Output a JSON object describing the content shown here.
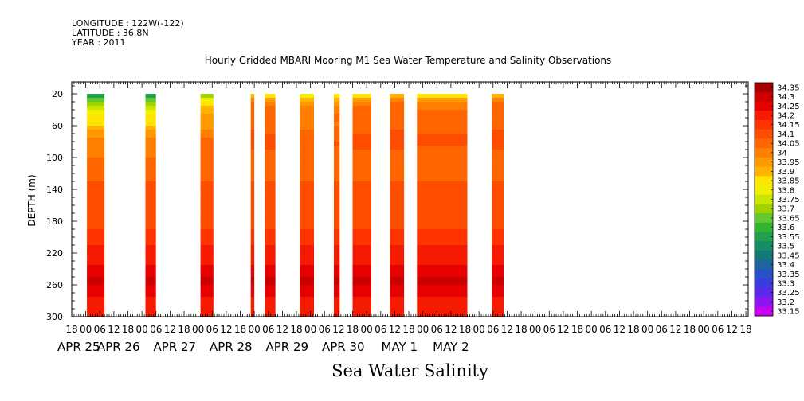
{
  "header": {
    "longitude": "LONGITUDE : 122W(-122)",
    "latitude": "LATITUDE : 36.8N",
    "year": "YEAR : 2011"
  },
  "chart_data": {
    "type": "heatmap",
    "title": "Hourly Gridded MBARI Mooring M1 Sea Water Temperature and Salinity Observations",
    "xlabel": "Sea Water Salinity",
    "ylabel": "DEPTH (m)",
    "y_axis": {
      "reversed": true,
      "ylim": [
        300,
        5
      ],
      "ticks": [
        20,
        60,
        100,
        140,
        180,
        220,
        260,
        300
      ]
    },
    "x_axis": {
      "units": "hours since 2011-04-25 00:00",
      "xlim": [
        -6,
        283
      ],
      "hour_ticks": [
        {
          "hour": -6,
          "label": "18"
        },
        {
          "hour": 0,
          "label": "00"
        },
        {
          "hour": 6,
          "label": "06"
        },
        {
          "hour": 12,
          "label": "12"
        },
        {
          "hour": 18,
          "label": "18"
        },
        {
          "hour": 24,
          "label": "00"
        },
        {
          "hour": 30,
          "label": "06"
        },
        {
          "hour": 36,
          "label": "12"
        },
        {
          "hour": 42,
          "label": "18"
        },
        {
          "hour": 48,
          "label": "00"
        },
        {
          "hour": 54,
          "label": "06"
        },
        {
          "hour": 60,
          "label": "12"
        },
        {
          "hour": 66,
          "label": "18"
        },
        {
          "hour": 72,
          "label": "00"
        },
        {
          "hour": 78,
          "label": "06"
        },
        {
          "hour": 84,
          "label": "12"
        },
        {
          "hour": 90,
          "label": "18"
        },
        {
          "hour": 96,
          "label": "00"
        },
        {
          "hour": 102,
          "label": "06"
        },
        {
          "hour": 108,
          "label": "12"
        },
        {
          "hour": 114,
          "label": "18"
        },
        {
          "hour": 120,
          "label": "00"
        },
        {
          "hour": 126,
          "label": "06"
        },
        {
          "hour": 132,
          "label": "12"
        },
        {
          "hour": 138,
          "label": "18"
        },
        {
          "hour": 144,
          "label": "00"
        },
        {
          "hour": 150,
          "label": "06"
        },
        {
          "hour": 156,
          "label": "12"
        },
        {
          "hour": 162,
          "label": "18"
        },
        {
          "hour": 168,
          "label": "00"
        },
        {
          "hour": 174,
          "label": "06"
        },
        {
          "hour": 180,
          "label": "12"
        },
        {
          "hour": 186,
          "label": "18"
        },
        {
          "hour": 192,
          "label": "00"
        },
        {
          "hour": 198,
          "label": "06"
        },
        {
          "hour": 204,
          "label": "12"
        },
        {
          "hour": 210,
          "label": "18"
        },
        {
          "hour": 216,
          "label": "00"
        },
        {
          "hour": 222,
          "label": "06"
        },
        {
          "hour": 228,
          "label": "12"
        },
        {
          "hour": 234,
          "label": "18"
        },
        {
          "hour": 240,
          "label": "00"
        },
        {
          "hour": 246,
          "label": "06"
        },
        {
          "hour": 252,
          "label": "12"
        },
        {
          "hour": 258,
          "label": "18"
        },
        {
          "hour": 264,
          "label": "00"
        },
        {
          "hour": 270,
          "label": "06"
        },
        {
          "hour": 276,
          "label": "12"
        },
        {
          "hour": 282,
          "label": "18"
        }
      ],
      "date_labels": [
        {
          "hour": -3,
          "label": "APR 25"
        },
        {
          "hour": 14,
          "label": "APR 26"
        },
        {
          "hour": 38,
          "label": "APR 27"
        },
        {
          "hour": 62,
          "label": "APR 28"
        },
        {
          "hour": 86,
          "label": "APR 29"
        },
        {
          "hour": 110,
          "label": "APR 30"
        },
        {
          "hour": 134,
          "label": "MAY  1"
        },
        {
          "hour": 156,
          "label": "MAY  2"
        }
      ]
    },
    "colorbar": {
      "levels": [
        "34.35",
        "34.3",
        "34.25",
        "34.2",
        "34.15",
        "34.1",
        "34.05",
        "34",
        "33.95",
        "33.9",
        "33.85",
        "33.8",
        "33.75",
        "33.7",
        "33.65",
        "33.6",
        "33.55",
        "33.5",
        "33.45",
        "33.4",
        "33.35",
        "33.3",
        "33.25",
        "33.2",
        "33.15"
      ],
      "colors": [
        "#a50000",
        "#cc0000",
        "#e60000",
        "#f51a00",
        "#ff3300",
        "#ff4d00",
        "#ff6600",
        "#ff8000",
        "#ff9900",
        "#ffb300",
        "#ffe600",
        "#f0f000",
        "#c8e600",
        "#a0d200",
        "#64c832",
        "#32b432",
        "#1ea050",
        "#148c64",
        "#147878",
        "#1e64a0",
        "#2850c8",
        "#3c3cdc",
        "#5a28e6",
        "#8c14f0",
        "#c800f0"
      ]
    },
    "profile": {
      "depths": [
        20,
        25,
        35,
        45,
        60,
        70,
        85,
        100,
        110,
        125,
        140,
        160,
        180,
        200,
        210,
        225,
        240,
        250,
        260,
        275,
        290,
        300
      ],
      "salinity": [
        33.5,
        33.65,
        33.78,
        33.85,
        33.9,
        33.98,
        34.04,
        34.05,
        34.07,
        34.09,
        34.12,
        34.13,
        34.14,
        34.16,
        34.2,
        34.22,
        34.26,
        34.3,
        34.3,
        34.25,
        34.22,
        34.22
      ]
    },
    "segments": [
      {
        "start": 0.5,
        "end": 8,
        "top_salinity": 33.5
      },
      {
        "start": 25.5,
        "end": 30,
        "top_salinity": 33.5
      },
      {
        "start": 49,
        "end": 54.5,
        "top_salinity": 33.65
      },
      {
        "start": 70.5,
        "end": 72,
        "top_salinity": 33.85
      },
      {
        "start": 76.5,
        "end": 81,
        "top_salinity": 33.82
      },
      {
        "start": 91.5,
        "end": 97.5,
        "top_salinity": 33.75
      },
      {
        "start": 106,
        "end": 108.5,
        "top_salinity": 33.78
      },
      {
        "start": 114,
        "end": 122,
        "top_salinity": 33.82
      },
      {
        "start": 130,
        "end": 136,
        "top_salinity": 33.85
      },
      {
        "start": 141.5,
        "end": 163,
        "top_salinity": 33.8
      },
      {
        "start": 173.5,
        "end": 178.5,
        "top_salinity": 33.85
      }
    ]
  }
}
